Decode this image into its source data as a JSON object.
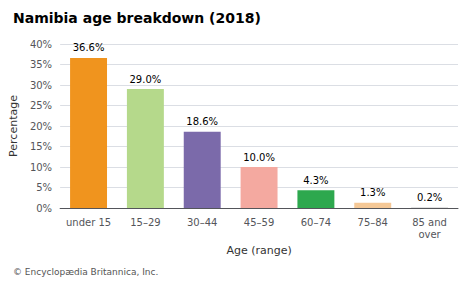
{
  "chart_data": {
    "type": "bar",
    "title": "Namibia age breakdown (2018)",
    "categories": [
      "under 15",
      "15–29",
      "30–44",
      "45–59",
      "60–74",
      "75–84",
      "85 and\nover"
    ],
    "values": [
      36.6,
      29.0,
      18.6,
      10.0,
      4.3,
      1.3,
      0.2
    ],
    "value_labels": [
      "36.6%",
      "29.0%",
      "18.6%",
      "10.0%",
      "4.3%",
      "1.3%",
      "0.2%"
    ],
    "colors": [
      "#f0941e",
      "#b5d98b",
      "#7b6aaa",
      "#f4a9a0",
      "#2da84e",
      "#f5c896",
      "#d8d8d8"
    ],
    "xlabel": "Age (range)",
    "ylabel": "Percentage",
    "ylim": [
      0,
      40
    ],
    "yticks": [
      {
        "value": 0,
        "label": "0%"
      },
      {
        "value": 5,
        "label": "5%"
      },
      {
        "value": 10,
        "label": "10%"
      },
      {
        "value": 15,
        "label": "15%"
      },
      {
        "value": 20,
        "label": "20%"
      },
      {
        "value": 25,
        "label": "25%"
      },
      {
        "value": 30,
        "label": "30%"
      },
      {
        "value": 35,
        "label": "35%"
      },
      {
        "value": 40,
        "label": "40%"
      }
    ],
    "footnote": "© Encyclopædia Britannica, Inc.",
    "grid": true,
    "data_labels": true
  }
}
